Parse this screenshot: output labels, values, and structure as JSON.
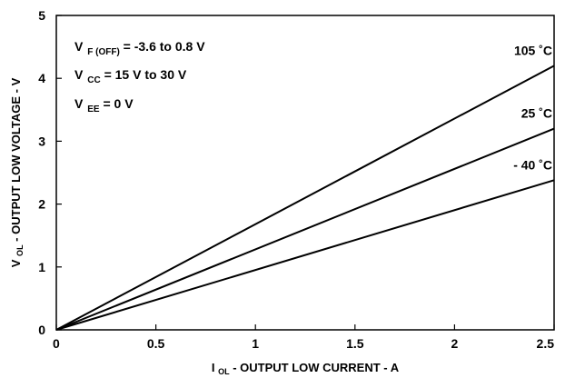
{
  "chart_data": {
    "type": "line",
    "xlabel": {
      "prefix": "I",
      "sub": "OL",
      "text": " - OUTPUT LOW CURRENT - A"
    },
    "ylabel": {
      "prefix": "V",
      "sub": "OL",
      "text": " - OUTPUT LOW VOLTAGE - V"
    },
    "xlim": [
      0,
      2.5
    ],
    "ylim": [
      0,
      5
    ],
    "x_ticks": [
      "0",
      "0.5",
      "1",
      "1.5",
      "2",
      "2.5"
    ],
    "y_ticks": [
      "0",
      "1",
      "2",
      "3",
      "4",
      "5"
    ],
    "grid": true,
    "series": [
      {
        "name": "105 ˚C",
        "x": [
          0,
          2.5
        ],
        "values": [
          0,
          4.2
        ]
      },
      {
        "name": "25 ˚C",
        "x": [
          0,
          2.5
        ],
        "values": [
          0,
          3.2
        ]
      },
      {
        "name": "- 40 ˚C",
        "x": [
          0,
          2.5
        ],
        "values": [
          0,
          2.38
        ]
      }
    ],
    "annotations": [
      {
        "main": "V",
        "sub": "F (OFF)",
        "rest": " = -3.6 to 0.8 V"
      },
      {
        "main": "V",
        "sub": "CC",
        "rest": " = 15 V to 30 V"
      },
      {
        "main": "V",
        "sub": "EE",
        "rest": " = 0 V"
      }
    ],
    "colors": {
      "line": "#000000",
      "grid": "#ffffff",
      "background": "#ffffff"
    }
  }
}
